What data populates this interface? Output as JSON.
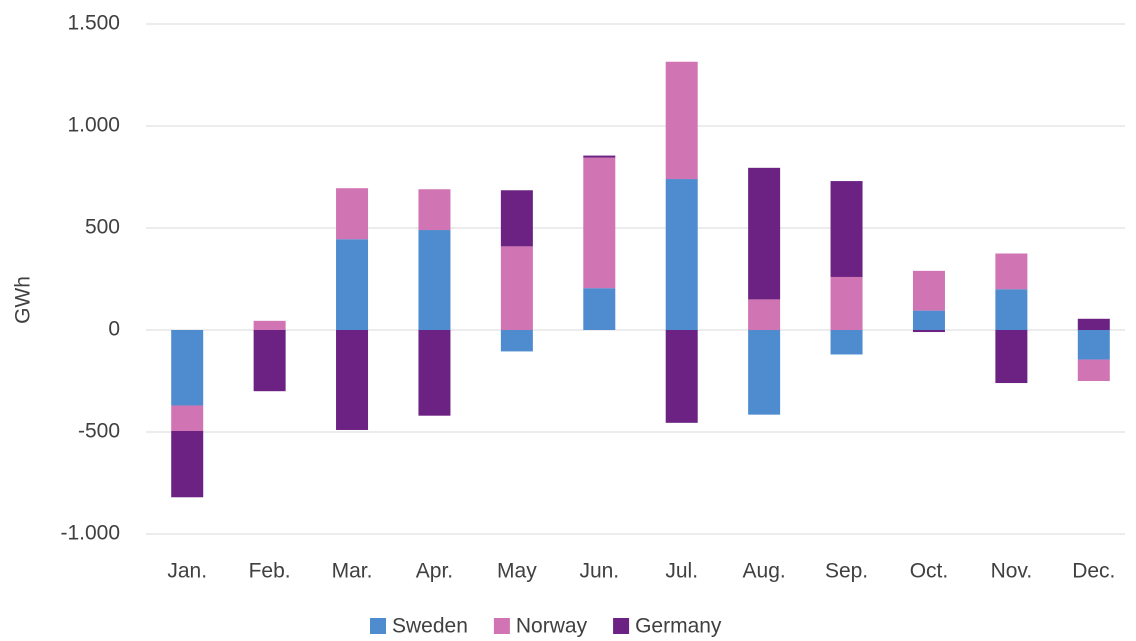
{
  "chart_data": {
    "type": "stacked_bar",
    "y_label": "GWh",
    "categories": [
      "Jan.",
      "Feb.",
      "Mar.",
      "Apr.",
      "May",
      "Jun.",
      "Jul.",
      "Aug.",
      "Sep.",
      "Oct.",
      "Nov.",
      "Dec."
    ],
    "series": [
      {
        "name": "Sweden",
        "color": "#4e8ccf",
        "values": [
          -370,
          0,
          445,
          490,
          -105,
          205,
          740,
          -415,
          -120,
          95,
          200,
          -145
        ]
      },
      {
        "name": "Norway",
        "color": "#d174b3",
        "values": [
          -125,
          45,
          250,
          200,
          410,
          640,
          575,
          150,
          260,
          195,
          175,
          -105
        ]
      },
      {
        "name": "Germany",
        "color": "#6b2282",
        "values": [
          -325,
          -300,
          -490,
          -420,
          275,
          10,
          -455,
          645,
          470,
          -10,
          -260,
          55
        ]
      }
    ],
    "ylim": [
      -1000,
      1500
    ],
    "yticks": [
      {
        "value": -1000,
        "label": "-1.000"
      },
      -500,
      0,
      500,
      {
        "value": 1000,
        "label": "1.000"
      },
      {
        "value": 1500,
        "label": "1.500"
      }
    ],
    "grid": true,
    "legend": "bottom"
  }
}
